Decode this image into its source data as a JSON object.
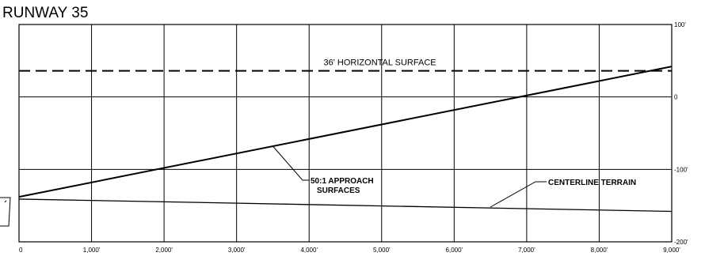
{
  "chart_data": {
    "type": "line",
    "title": "RUNWAY 35",
    "xlabel": "",
    "ylabel": "",
    "xlim": [
      0,
      9000
    ],
    "ylim": [
      -200,
      100
    ],
    "grid": true,
    "x_ticks": [
      0,
      1000,
      2000,
      3000,
      4000,
      5000,
      6000,
      7000,
      8000,
      9000
    ],
    "x_tick_labels": [
      "0",
      "1,000'",
      "2,000'",
      "3,000'",
      "4,000'",
      "5,000'",
      "6,000'",
      "7,000'",
      "8,000'",
      "9,000'"
    ],
    "y_ticks": [
      100,
      0,
      -100,
      -200
    ],
    "y_tick_labels": [
      "100'",
      "0",
      "-100'",
      "-200'"
    ],
    "series": [
      {
        "name": "36' HORIZONTAL SURFACE",
        "style": "dashed",
        "x": [
          0,
          9000
        ],
        "y": [
          36,
          36
        ]
      },
      {
        "name": "50:1 APPROACH SURFACES",
        "style": "solid",
        "x": [
          0,
          9000
        ],
        "y": [
          -138,
          42
        ]
      },
      {
        "name": "CENTERLINE TERRAIN",
        "style": "solid",
        "x": [
          0,
          9000
        ],
        "y": [
          -141,
          -158
        ]
      }
    ],
    "annotations": [
      {
        "text": "36' HORIZONTAL SURFACE",
        "x": 4200,
        "y": 44
      },
      {
        "text": "50:1 APPROACH SURFACES",
        "lines": [
          "50:1 APPROACH",
          "SURFACES"
        ],
        "x": 3500,
        "y": -68
      },
      {
        "text": "CENTERLINE TERRAIN",
        "x": 6700,
        "y": -154
      }
    ]
  }
}
